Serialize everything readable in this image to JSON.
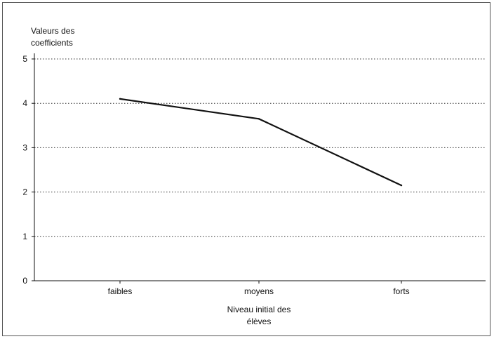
{
  "chart_data": {
    "type": "line",
    "ylabel_line1": "Valeurs des",
    "ylabel_line2": "coefficients",
    "xlabel_line1": "Niveau initial des",
    "xlabel_line2": "élèves",
    "categories": [
      "faibles",
      "moyens",
      "forts"
    ],
    "series": [
      {
        "values": [
          4.1,
          3.65,
          2.15
        ]
      }
    ],
    "ylim": [
      0,
      5
    ],
    "yticks": [
      0,
      1,
      2,
      3,
      4,
      5
    ],
    "grid": true,
    "grid_style": "dotted",
    "line_color": "#111111"
  }
}
